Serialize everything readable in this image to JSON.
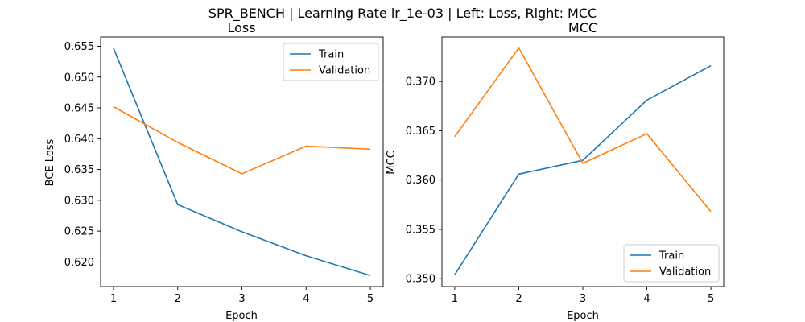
{
  "figure": {
    "suptitle": "SPR_BENCH | Learning Rate lr_1e-03 | Left: Loss, Right: MCC"
  },
  "colors": {
    "train": "#1f77b4",
    "validation": "#ff7f0e"
  },
  "chart_data": [
    {
      "type": "line",
      "title": "Loss",
      "xlabel": "Epoch",
      "ylabel": "BCE Loss",
      "x": [
        1,
        2,
        3,
        4,
        5
      ],
      "xticks": [
        1,
        2,
        3,
        4,
        5
      ],
      "xlim": [
        0.8,
        5.2
      ],
      "yticks": [
        0.62,
        0.625,
        0.63,
        0.635,
        0.64,
        0.645,
        0.65,
        0.655
      ],
      "ytick_labels": [
        "0.620",
        "0.625",
        "0.630",
        "0.635",
        "0.640",
        "0.645",
        "0.650",
        "0.655"
      ],
      "ylim": [
        0.616,
        0.6565
      ],
      "legend_position": "top-right",
      "grid": false,
      "series": [
        {
          "name": "Train",
          "values": [
            0.6547,
            0.6293,
            0.6249,
            0.621,
            0.6178
          ]
        },
        {
          "name": "Validation",
          "values": [
            0.6452,
            0.6394,
            0.6343,
            0.6388,
            0.6383
          ]
        }
      ]
    },
    {
      "type": "line",
      "title": "MCC",
      "xlabel": "Epoch",
      "ylabel": "MCC",
      "x": [
        1,
        2,
        3,
        4,
        5
      ],
      "xticks": [
        1,
        2,
        3,
        4,
        5
      ],
      "xlim": [
        0.8,
        5.2
      ],
      "yticks": [
        0.35,
        0.355,
        0.36,
        0.365,
        0.37
      ],
      "ytick_labels": [
        "0.350",
        "0.355",
        "0.360",
        "0.365",
        "0.370"
      ],
      "ylim": [
        0.3492,
        0.3745
      ],
      "legend_position": "bottom-right",
      "grid": false,
      "series": [
        {
          "name": "Train",
          "values": [
            0.3504,
            0.3606,
            0.362,
            0.3681,
            0.3716
          ]
        },
        {
          "name": "Validation",
          "values": [
            0.3644,
            0.3734,
            0.3617,
            0.3647,
            0.3568
          ]
        }
      ]
    }
  ]
}
